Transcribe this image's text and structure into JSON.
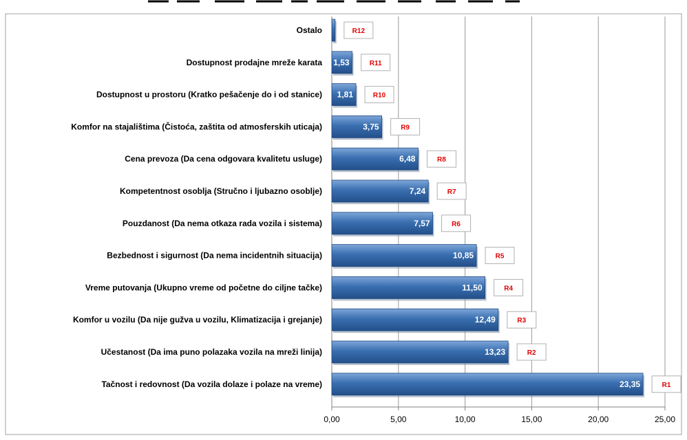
{
  "chart_data": {
    "type": "bar",
    "orientation": "horizontal",
    "categories": [
      "Tačnost i redovnost (Da vozila dolaze i polaze na vreme)",
      "Učestanost  (Da ima puno polazaka vozila na mreži linija)",
      "Komfor u vozilu (Da nije gužva u vozilu, Klimatizacija i grejanje)",
      "Vreme putovanja (Ukupno vreme od početne do ciljne tačke)",
      "Bezbednost i sigurnost (Da nema incidentnih situacija)",
      "Pouzdanost (Da nema otkaza rada vozila i sistema)",
      "Kompetentnost osoblja (Stručno i ljubazno osoblje)",
      "Cena prevoza (Da cena odgovara kvalitetu usluge)",
      "Komfor na stajalištima (Čistoća, zaštita od atmosferskih uticaja)",
      "Dostupnost u prostoru (Kratko pešačenje do i od stanice)",
      "Dostupnost prodajne mreže karata",
      "Ostalo"
    ],
    "values": [
      23.35,
      13.23,
      12.49,
      11.5,
      10.85,
      7.57,
      7.24,
      6.48,
      3.75,
      1.81,
      1.53,
      0.25
    ],
    "value_labels": [
      "23,35",
      "13,23",
      "12,49",
      "11,50",
      "10,85",
      "7,57",
      "7,24",
      "6,48",
      "3,75",
      "1,81",
      "1,53",
      ""
    ],
    "ranks": [
      "R1",
      "R2",
      "R3",
      "R4",
      "R5",
      "R6",
      "R7",
      "R8",
      "R9",
      "R10",
      "R11",
      "R12"
    ],
    "xlim": [
      0,
      25
    ],
    "xticks": [
      0,
      5,
      10,
      15,
      20,
      25
    ],
    "xtick_labels": [
      "0,00",
      "5,00",
      "10,00",
      "15,00",
      "20,00",
      "25,00"
    ],
    "grid": "vertical",
    "bar_color": "#3a6fb0",
    "rank_color": "#e00000"
  }
}
